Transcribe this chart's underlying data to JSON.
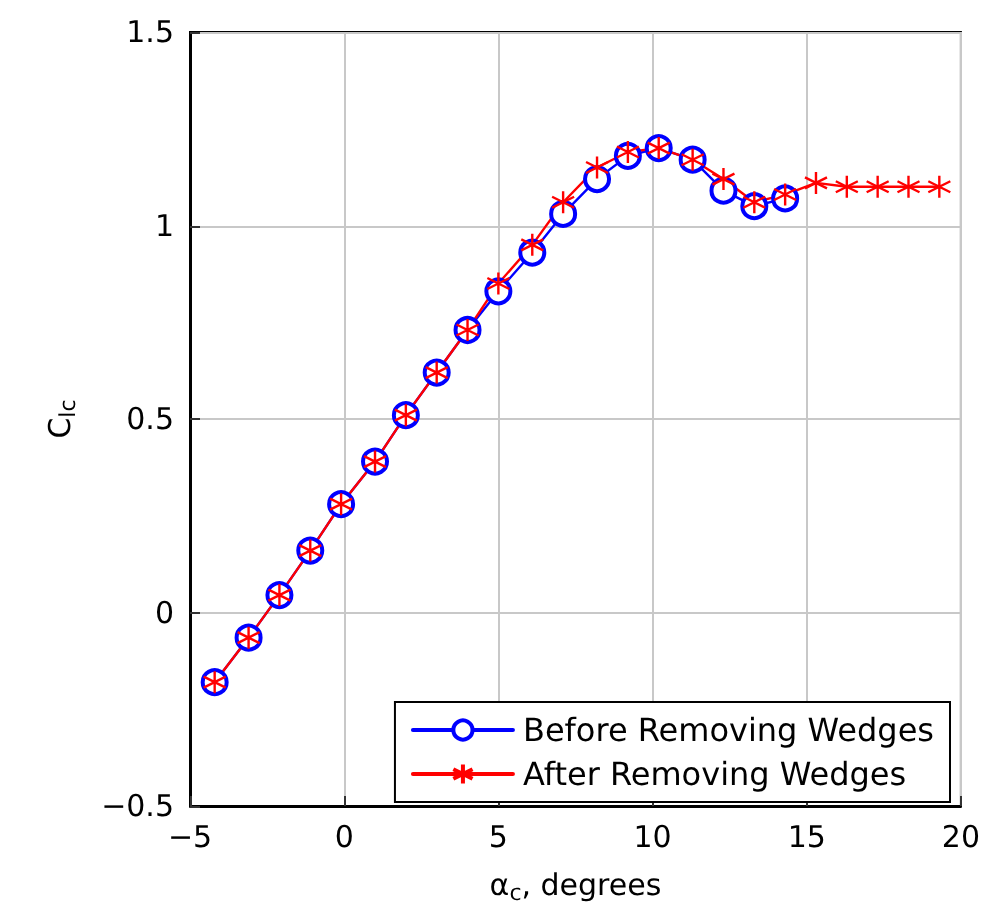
{
  "chart_data": {
    "type": "line",
    "xlabel": "α$_{c}$, degrees",
    "ylabel": "C$_{lc}$",
    "xlim": [
      -5,
      20
    ],
    "xticks": [
      -5,
      0,
      5,
      10,
      15,
      20
    ],
    "ylim": [
      -0.5,
      1.5
    ],
    "yticks": [
      -0.5,
      0,
      0.5,
      1,
      1.5
    ],
    "grid": true,
    "legend": "bottom right",
    "line_style": "solid",
    "series": [
      {
        "name": "Before Removing Wedges",
        "color": "#0000ff",
        "marker": "circle",
        "x": [
          -4.2,
          -3.1,
          -2.1,
          -1.1,
          -0.1,
          1,
          2,
          3,
          4,
          5,
          6.1,
          7.1,
          8.2,
          9.2,
          10.2,
          11.3,
          12.3,
          13.3,
          14.3
        ],
        "values": [
          -0.18,
          -0.065,
          0.045,
          0.16,
          0.28,
          0.39,
          0.51,
          0.62,
          0.73,
          0.83,
          0.93,
          1.03,
          1.12,
          1.18,
          1.2,
          1.17,
          1.09,
          1.05,
          1.07
        ]
      },
      {
        "name": "After Removing Wedges",
        "color": "#ff0000",
        "marker": "cross",
        "x": [
          -4.2,
          -3.1,
          -2.1,
          -1.1,
          -0.1,
          1,
          2,
          3,
          4,
          5,
          6.1,
          7.1,
          8.2,
          9.2,
          10.2,
          11.3,
          12.3,
          13.3,
          14.3,
          15.3,
          16.3,
          17.3,
          18.3,
          19.3
        ],
        "values": [
          -0.18,
          -0.065,
          0.045,
          0.16,
          0.28,
          0.39,
          0.51,
          0.62,
          0.73,
          0.85,
          0.95,
          1.06,
          1.15,
          1.19,
          1.2,
          1.17,
          1.12,
          1.06,
          1.08,
          1.11,
          1.1,
          1.1,
          1.1,
          1.1
        ]
      }
    ]
  }
}
